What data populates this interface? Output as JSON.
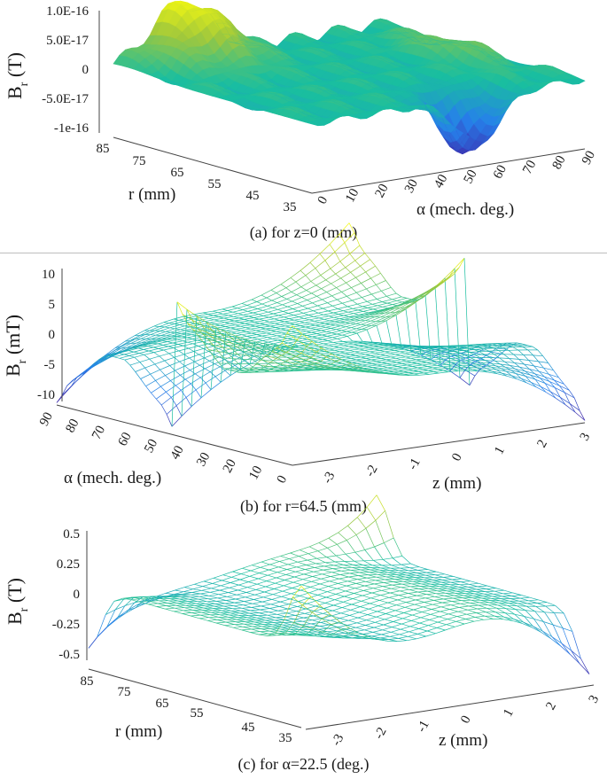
{
  "chart_data": [
    {
      "type": "surface3d",
      "id": "a",
      "caption": "(a) for z=0 (mm)",
      "zlabel": "B",
      "zlabel_sub": "r",
      "zlabel_unit": " (T)",
      "zticks": [
        "1.0E-16",
        "5.0E-17",
        "0",
        "-5.0E-17",
        "-1e-16"
      ],
      "ztick_values": [
        1e-16,
        5e-17,
        0,
        -5e-17,
        -1e-16
      ],
      "zlim": [
        -1.1e-16,
        1.1e-16
      ],
      "xlabel": "r (mm)",
      "xticks": [
        "85",
        "75",
        "65",
        "55",
        "45",
        "35"
      ],
      "xlim": [
        35,
        85
      ],
      "ylabel": "α (mech. deg.)",
      "yticks": [
        "0",
        "10",
        "20",
        "30",
        "40",
        "50",
        "60",
        "70",
        "80",
        "90"
      ],
      "ylim": [
        0,
        90
      ],
      "description_of_surface": "noise-level field, peak ~1e-16 near r=85, alpha≈20; trough ~-1e-16 near r=40, alpha≈55"
    },
    {
      "type": "surface3d",
      "id": "b",
      "caption": "(b) for r=64.5 (mm)",
      "zlabel": "B",
      "zlabel_sub": "r",
      "zlabel_unit": " (mT)",
      "zticks": [
        "10",
        "5",
        "0",
        "-5",
        "-10"
      ],
      "ztick_values": [
        10,
        5,
        0,
        -5,
        -10
      ],
      "zlim": [
        -11,
        11
      ],
      "xlabel": "α (mech. deg.)",
      "xticks": [
        "90",
        "80",
        "70",
        "60",
        "50",
        "40",
        "30",
        "20",
        "10",
        "0"
      ],
      "xlim": [
        0,
        90
      ],
      "ylabel": "z (mm)",
      "yticks": [
        "-3",
        "-2",
        "-1",
        "0",
        "1",
        "2",
        "3"
      ],
      "ylim": [
        -3,
        3
      ],
      "description_of_surface": "Br antisymmetric in z, peaks ~±10 mT at z=±3 near pole edges (alpha≈45, 0, 90)"
    },
    {
      "type": "surface3d",
      "id": "c",
      "caption": "(c) for α=22.5 (deg.)",
      "zlabel": "B",
      "zlabel_sub": "r",
      "zlabel_unit": " (T)",
      "zticks": [
        "0.5",
        "0.25",
        "0",
        "-0.25",
        "-0.5"
      ],
      "ztick_values": [
        0.5,
        0.25,
        0,
        -0.25,
        -0.5
      ],
      "zlim": [
        -0.55,
        0.55
      ],
      "xlabel": "r (mm)",
      "xticks": [
        "85",
        "75",
        "65",
        "55",
        "45",
        "35"
      ],
      "xlim": [
        35,
        85
      ],
      "ylabel": "z (mm)",
      "yticks": [
        "-3",
        "-2",
        "-1",
        "0",
        "1",
        "2",
        "3"
      ],
      "ylim": [
        -3,
        3
      ],
      "description_of_surface": "Br ~±0.5 T at z=±3 near r=35 and r=85, near zero in the middle"
    }
  ]
}
